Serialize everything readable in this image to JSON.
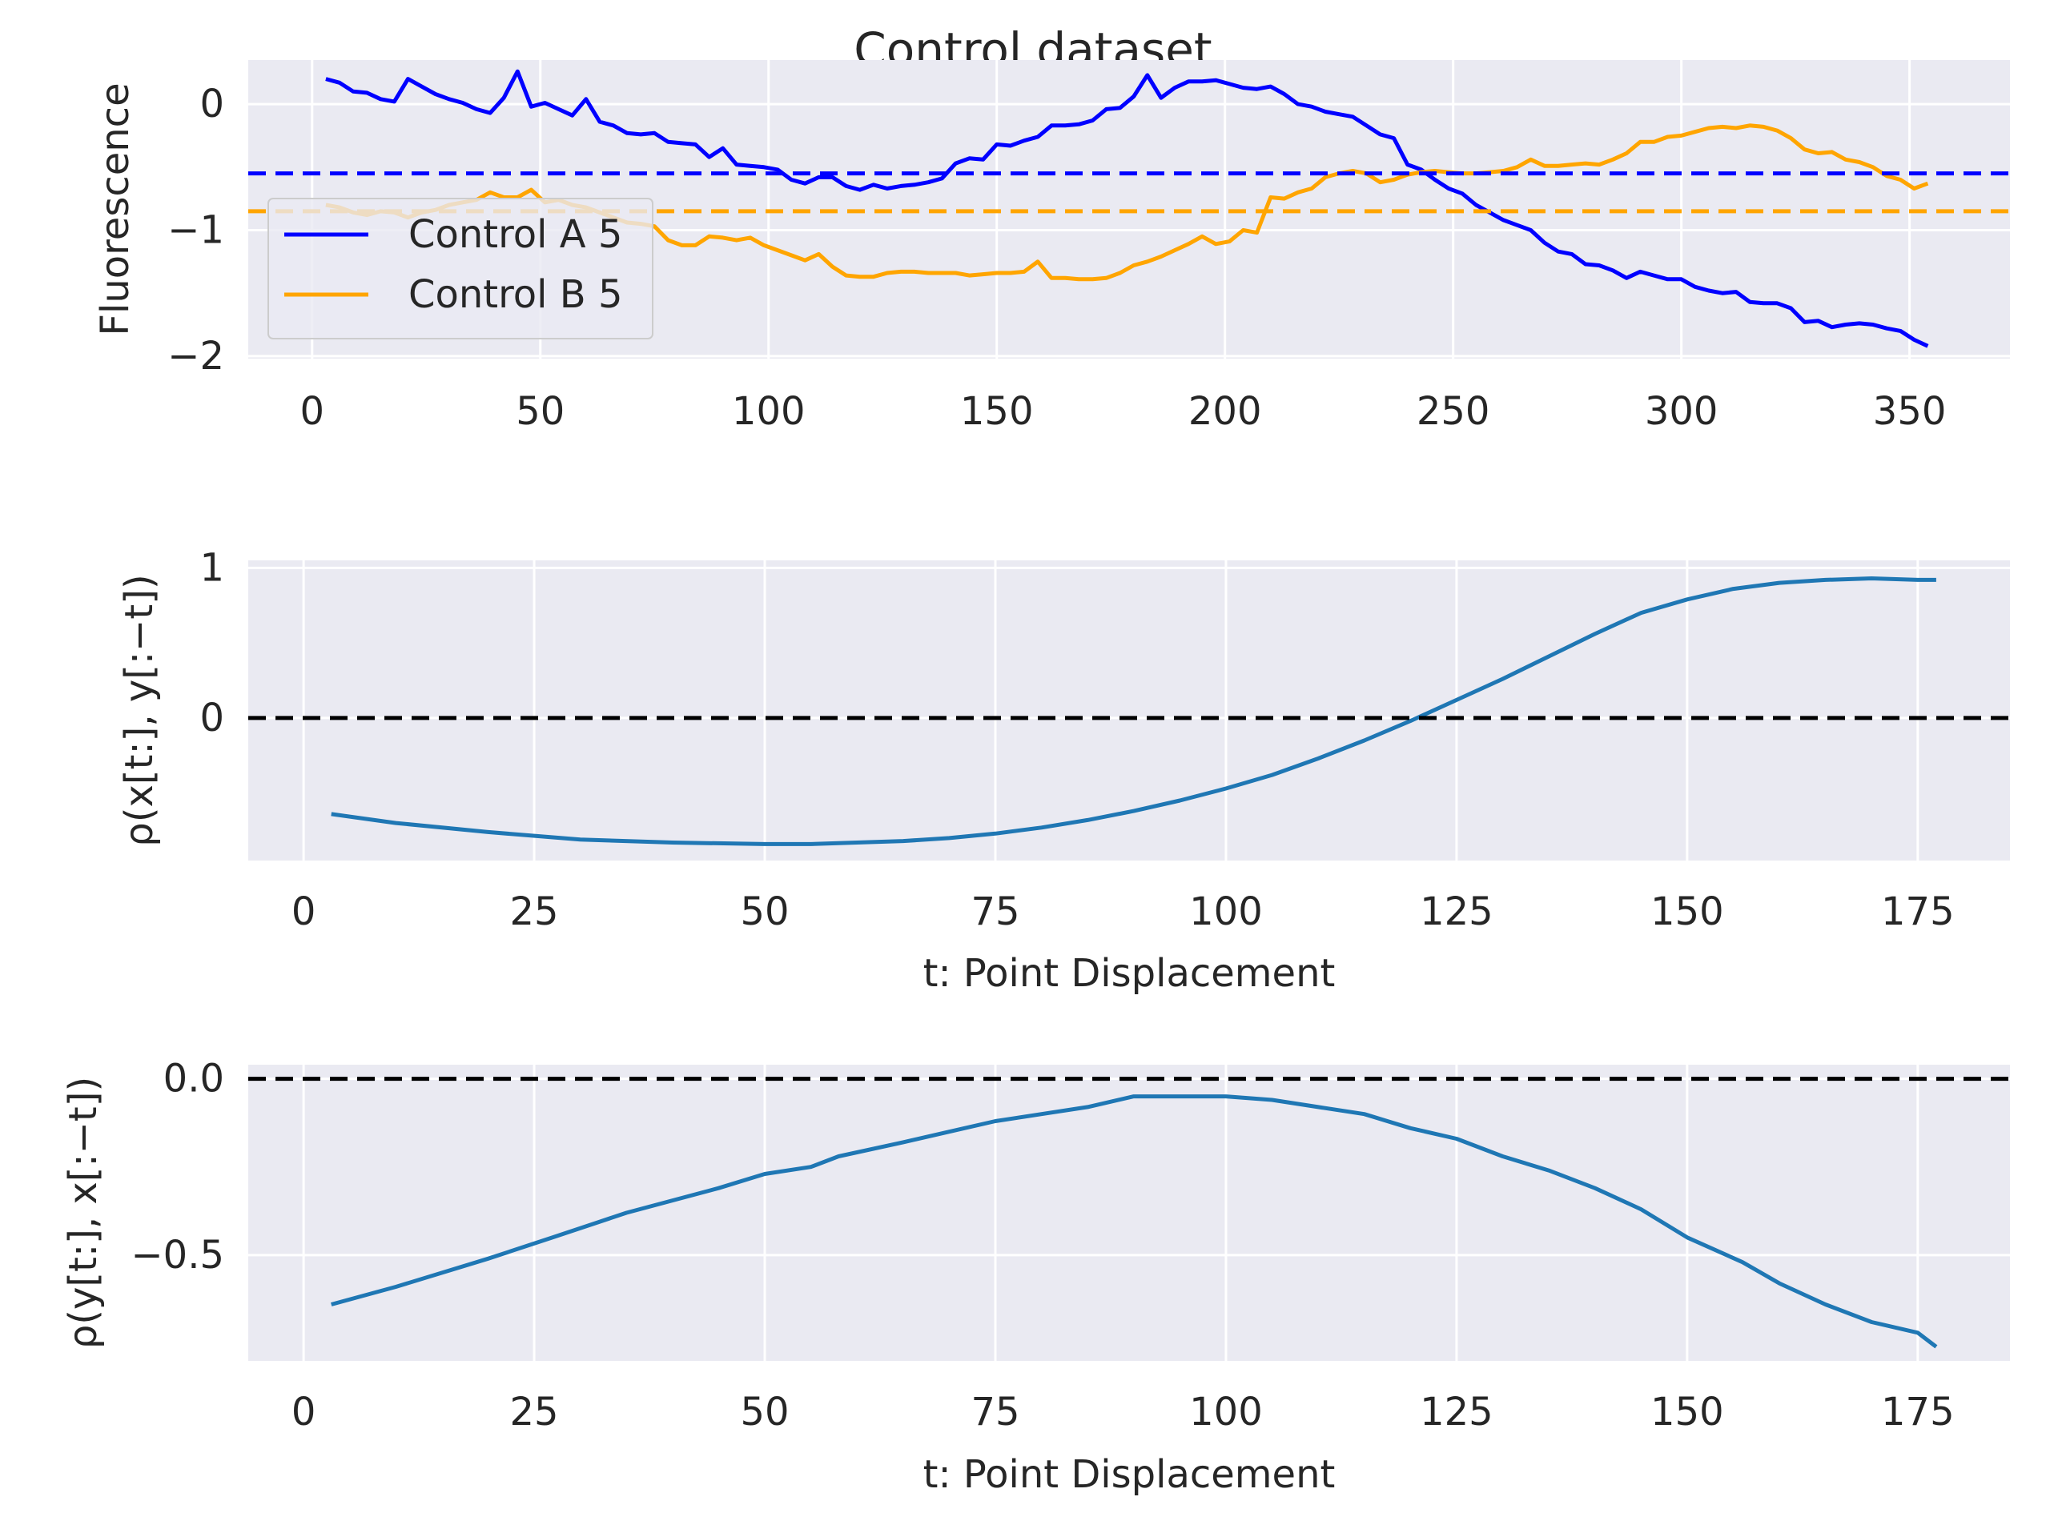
{
  "figure": {
    "title": "Control dataset"
  },
  "chart_data": [
    {
      "type": "line",
      "ylabel": "Fluorescence",
      "xlabel": "",
      "xlim": [
        -14,
        372
      ],
      "ylim": [
        -2.02,
        0.35
      ],
      "xticks": [
        0,
        50,
        100,
        150,
        200,
        250,
        300,
        350
      ],
      "yticks": [
        0,
        -1,
        -2
      ],
      "ytick_labels": [
        "0",
        "−1",
        "−2"
      ],
      "legend_position": "center-left",
      "grid": true,
      "series": [
        {
          "name": "Control A 5",
          "color": "#0000ff",
          "x": [
            3,
            6,
            9,
            12,
            15,
            18,
            21,
            24,
            27,
            30,
            33,
            36,
            39,
            42,
            45,
            48,
            51,
            54,
            57,
            60,
            63,
            66,
            69,
            72,
            75,
            78,
            81,
            84,
            87,
            90,
            93,
            96,
            99,
            102,
            105,
            108,
            111,
            114,
            117,
            120,
            123,
            126,
            129,
            132,
            135,
            138,
            141,
            144,
            147,
            150,
            153,
            156,
            159,
            162,
            165,
            168,
            171,
            174,
            177,
            180,
            183,
            186,
            189,
            192,
            195,
            198,
            201,
            204,
            207,
            210,
            213,
            216,
            219,
            222,
            225,
            228,
            231,
            234,
            237,
            240,
            243,
            246,
            249,
            252,
            255,
            258,
            261,
            264,
            267,
            270,
            273,
            276,
            279,
            282,
            285,
            288,
            291,
            294,
            297,
            300,
            303,
            306,
            309,
            312,
            315,
            318,
            321,
            324,
            327,
            330,
            333,
            336,
            339,
            342,
            345,
            348,
            351,
            354
          ],
          "y": [
            0.2,
            0.17,
            0.1,
            0.09,
            0.04,
            0.02,
            0.2,
            0.14,
            0.08,
            0.04,
            0.01,
            -0.04,
            -0.07,
            0.05,
            0.26,
            -0.02,
            0.01,
            -0.04,
            -0.09,
            0.04,
            -0.14,
            -0.17,
            -0.23,
            -0.24,
            -0.23,
            -0.3,
            -0.31,
            -0.32,
            -0.42,
            -0.35,
            -0.48,
            -0.49,
            -0.5,
            -0.52,
            -0.6,
            -0.63,
            -0.58,
            -0.58,
            -0.65,
            -0.68,
            -0.64,
            -0.67,
            -0.65,
            -0.64,
            -0.62,
            -0.59,
            -0.47,
            -0.43,
            -0.44,
            -0.32,
            -0.33,
            -0.29,
            -0.26,
            -0.17,
            -0.17,
            -0.16,
            -0.13,
            -0.04,
            -0.03,
            0.06,
            0.23,
            0.05,
            0.13,
            0.18,
            0.18,
            0.19,
            0.16,
            0.13,
            0.12,
            0.14,
            0.08,
            0.0,
            -0.02,
            -0.06,
            -0.08,
            -0.1,
            -0.17,
            -0.24,
            -0.27,
            -0.48,
            -0.52,
            -0.6,
            -0.67,
            -0.71,
            -0.8,
            -0.86,
            -0.92,
            -0.96,
            -1.0,
            -1.1,
            -1.17,
            -1.19,
            -1.27,
            -1.28,
            -1.32,
            -1.38,
            -1.33,
            -1.36,
            -1.39,
            -1.39,
            -1.45,
            -1.48,
            -1.5,
            -1.49,
            -1.57,
            -1.58,
            -1.58,
            -1.62,
            -1.73,
            -1.72,
            -1.77,
            -1.75,
            -1.74,
            -1.75,
            -1.78,
            -1.8,
            -1.87,
            -1.92
          ]
        },
        {
          "name": "Control B 5",
          "color": "#ffa500",
          "x": [
            3,
            6,
            9,
            12,
            15,
            18,
            21,
            24,
            27,
            30,
            33,
            36,
            39,
            42,
            45,
            48,
            51,
            54,
            57,
            60,
            63,
            66,
            69,
            72,
            75,
            78,
            81,
            84,
            87,
            90,
            93,
            96,
            99,
            102,
            105,
            108,
            111,
            114,
            117,
            120,
            123,
            126,
            129,
            132,
            135,
            138,
            141,
            144,
            147,
            150,
            153,
            156,
            159,
            162,
            165,
            168,
            171,
            174,
            177,
            180,
            183,
            186,
            189,
            192,
            195,
            198,
            201,
            204,
            207,
            210,
            213,
            216,
            219,
            222,
            225,
            228,
            231,
            234,
            237,
            240,
            243,
            246,
            249,
            252,
            255,
            258,
            261,
            264,
            267,
            270,
            273,
            276,
            279,
            282,
            285,
            288,
            291,
            294,
            297,
            300,
            303,
            306,
            309,
            312,
            315,
            318,
            321,
            324,
            327,
            330,
            333,
            336,
            339,
            342,
            345,
            348,
            351,
            354
          ],
          "y": [
            -0.8,
            -0.82,
            -0.86,
            -0.88,
            -0.85,
            -0.86,
            -0.9,
            -0.86,
            -0.84,
            -0.8,
            -0.78,
            -0.76,
            -0.7,
            -0.74,
            -0.74,
            -0.68,
            -0.78,
            -0.76,
            -0.8,
            -0.82,
            -0.86,
            -0.9,
            -0.94,
            -0.95,
            -0.97,
            -1.08,
            -1.12,
            -1.12,
            -1.05,
            -1.06,
            -1.08,
            -1.06,
            -1.12,
            -1.16,
            -1.2,
            -1.24,
            -1.19,
            -1.29,
            -1.36,
            -1.37,
            -1.37,
            -1.34,
            -1.33,
            -1.33,
            -1.34,
            -1.34,
            -1.34,
            -1.36,
            -1.35,
            -1.34,
            -1.34,
            -1.33,
            -1.25,
            -1.38,
            -1.38,
            -1.39,
            -1.39,
            -1.38,
            -1.34,
            -1.28,
            -1.25,
            -1.21,
            -1.16,
            -1.11,
            -1.05,
            -1.11,
            -1.09,
            -1.0,
            -1.02,
            -0.74,
            -0.75,
            -0.7,
            -0.67,
            -0.58,
            -0.55,
            -0.53,
            -0.55,
            -0.62,
            -0.6,
            -0.56,
            -0.54,
            -0.53,
            -0.54,
            -0.55,
            -0.55,
            -0.54,
            -0.53,
            -0.5,
            -0.44,
            -0.49,
            -0.49,
            -0.48,
            -0.47,
            -0.48,
            -0.44,
            -0.39,
            -0.3,
            -0.3,
            -0.26,
            -0.25,
            -0.22,
            -0.19,
            -0.18,
            -0.19,
            -0.17,
            -0.18,
            -0.21,
            -0.27,
            -0.36,
            -0.39,
            -0.38,
            -0.44,
            -0.46,
            -0.5,
            -0.57,
            -0.6,
            -0.67,
            -0.63
          ]
        }
      ],
      "hlines": [
        {
          "y": -0.55,
          "color": "#0000ff",
          "style": "dashed"
        },
        {
          "y": -0.85,
          "color": "#ffa500",
          "style": "dashed"
        }
      ]
    },
    {
      "type": "line",
      "ylabel": "ρ(x[t:], y[:−t])",
      "xlabel": "t: Point Displacement",
      "xlim": [
        -6,
        185
      ],
      "ylim": [
        -0.95,
        1.05
      ],
      "xticks": [
        0,
        25,
        50,
        75,
        100,
        125,
        150,
        175
      ],
      "yticks": [
        1,
        0
      ],
      "ytick_labels": [
        "1",
        "0"
      ],
      "grid": true,
      "series": [
        {
          "color": "#1f77b4",
          "x": [
            3,
            10,
            20,
            30,
            40,
            50,
            55,
            60,
            65,
            70,
            75,
            80,
            85,
            90,
            95,
            100,
            105,
            110,
            115,
            120,
            125,
            130,
            135,
            140,
            145,
            150,
            155,
            160,
            165,
            170,
            175,
            177
          ],
          "y": [
            -0.64,
            -0.7,
            -0.76,
            -0.81,
            -0.83,
            -0.84,
            -0.84,
            -0.83,
            -0.82,
            -0.8,
            -0.77,
            -0.73,
            -0.68,
            -0.62,
            -0.55,
            -0.47,
            -0.38,
            -0.27,
            -0.15,
            -0.02,
            0.12,
            0.26,
            0.41,
            0.56,
            0.7,
            0.79,
            0.86,
            0.9,
            0.92,
            0.93,
            0.92,
            0.92
          ]
        }
      ],
      "hlines": [
        {
          "y": 0,
          "color": "#000000",
          "style": "dashed"
        }
      ]
    },
    {
      "type": "line",
      "ylabel": "ρ(y[t:], x[:−t])",
      "xlabel": "t: Point Displacement",
      "xlim": [
        -6,
        185
      ],
      "ylim": [
        -0.8,
        0.04
      ],
      "xticks": [
        0,
        25,
        50,
        75,
        100,
        125,
        150,
        175
      ],
      "yticks": [
        0.0,
        -0.5
      ],
      "ytick_labels": [
        "0.0",
        "−0.5"
      ],
      "grid": true,
      "series": [
        {
          "color": "#1f77b4",
          "x": [
            3,
            10,
            20,
            27,
            35,
            45,
            50,
            55,
            58,
            65,
            70,
            75,
            80,
            85,
            90,
            96,
            100,
            105,
            110,
            115,
            120,
            125,
            130,
            135,
            140,
            145,
            150,
            156,
            160,
            165,
            170,
            175,
            177
          ],
          "y": [
            -0.64,
            -0.59,
            -0.51,
            -0.45,
            -0.38,
            -0.31,
            -0.27,
            -0.25,
            -0.22,
            -0.18,
            -0.15,
            -0.12,
            -0.1,
            -0.08,
            -0.05,
            -0.05,
            -0.05,
            -0.06,
            -0.08,
            -0.1,
            -0.14,
            -0.17,
            -0.22,
            -0.26,
            -0.31,
            -0.37,
            -0.45,
            -0.52,
            -0.58,
            -0.64,
            -0.69,
            -0.72,
            -0.76
          ]
        }
      ],
      "hlines": [
        {
          "y": 0,
          "color": "#000000",
          "style": "dashed"
        }
      ]
    }
  ]
}
